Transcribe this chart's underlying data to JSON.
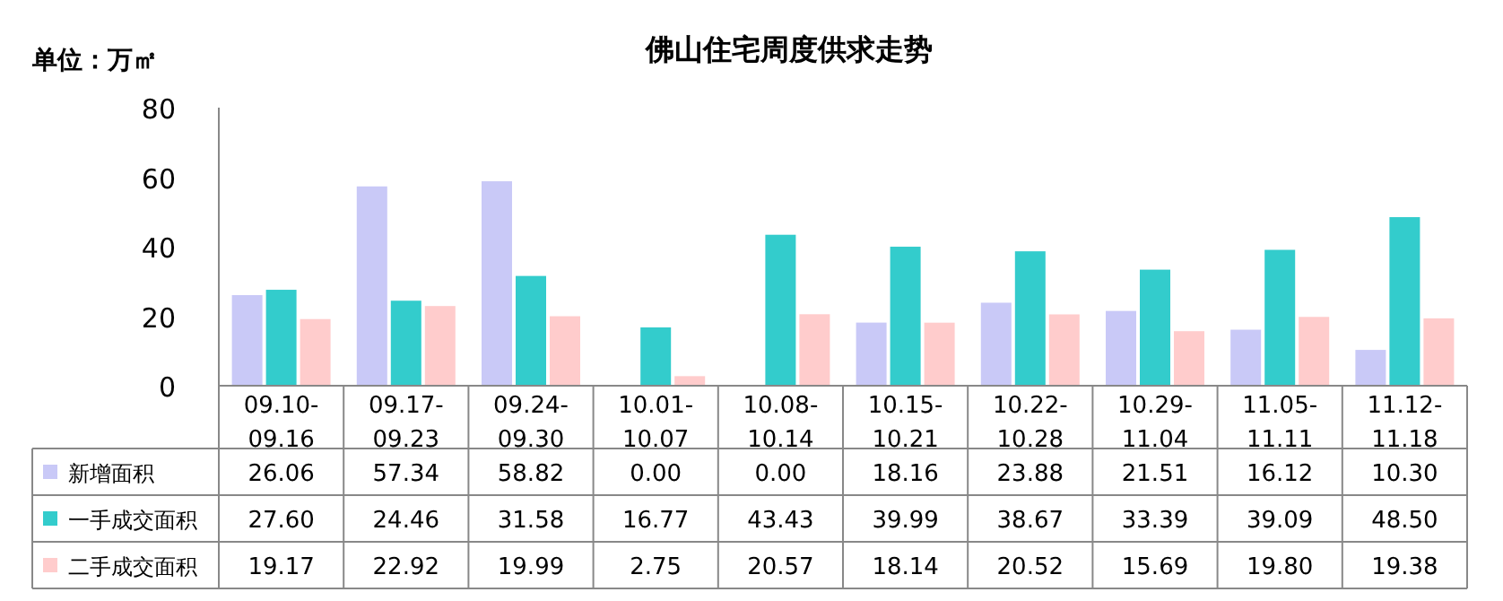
{
  "chart_data": {
    "type": "bar",
    "title": "佛山住宅周度供求走势",
    "annotations": [
      "单位：万㎡"
    ],
    "categories": [
      "09.10-09.16",
      "09.17-09.23",
      "09.24-09.30",
      "10.01-10.07",
      "10.08-10.14",
      "10.15-10.21",
      "10.22-10.28",
      "10.29-11.04",
      "11.05-11.11",
      "11.12-11.18"
    ],
    "series": [
      {
        "name": "新增面积",
        "color": "#c9c9f7",
        "values": [
          26.06,
          57.34,
          58.82,
          0.0,
          0.0,
          18.16,
          23.88,
          21.51,
          16.12,
          10.3
        ],
        "value_labels": [
          "26.06",
          "57.34",
          "58.82",
          "0.00",
          "0.00",
          "18.16",
          "23.88",
          "21.51",
          "16.12",
          "10.30"
        ]
      },
      {
        "name": "一手成交面积",
        "color": "#33cccc",
        "values": [
          27.6,
          24.46,
          31.58,
          16.77,
          43.43,
          39.99,
          38.67,
          33.39,
          39.09,
          48.5
        ],
        "value_labels": [
          "27.60",
          "24.46",
          "31.58",
          "16.77",
          "43.43",
          "39.99",
          "38.67",
          "33.39",
          "39.09",
          "48.50"
        ]
      },
      {
        "name": "二手成交面积",
        "color": "#ffcccc",
        "values": [
          19.17,
          22.92,
          19.99,
          2.75,
          20.57,
          18.14,
          20.52,
          15.69,
          19.8,
          19.38
        ],
        "value_labels": [
          "19.17",
          "22.92",
          "19.99",
          "2.75",
          "20.57",
          "18.14",
          "20.52",
          "15.69",
          "19.80",
          "19.38"
        ]
      }
    ],
    "ylim": [
      0,
      80
    ],
    "yticks": [
      0,
      20,
      40,
      60,
      80
    ],
    "legend": "bottom"
  }
}
